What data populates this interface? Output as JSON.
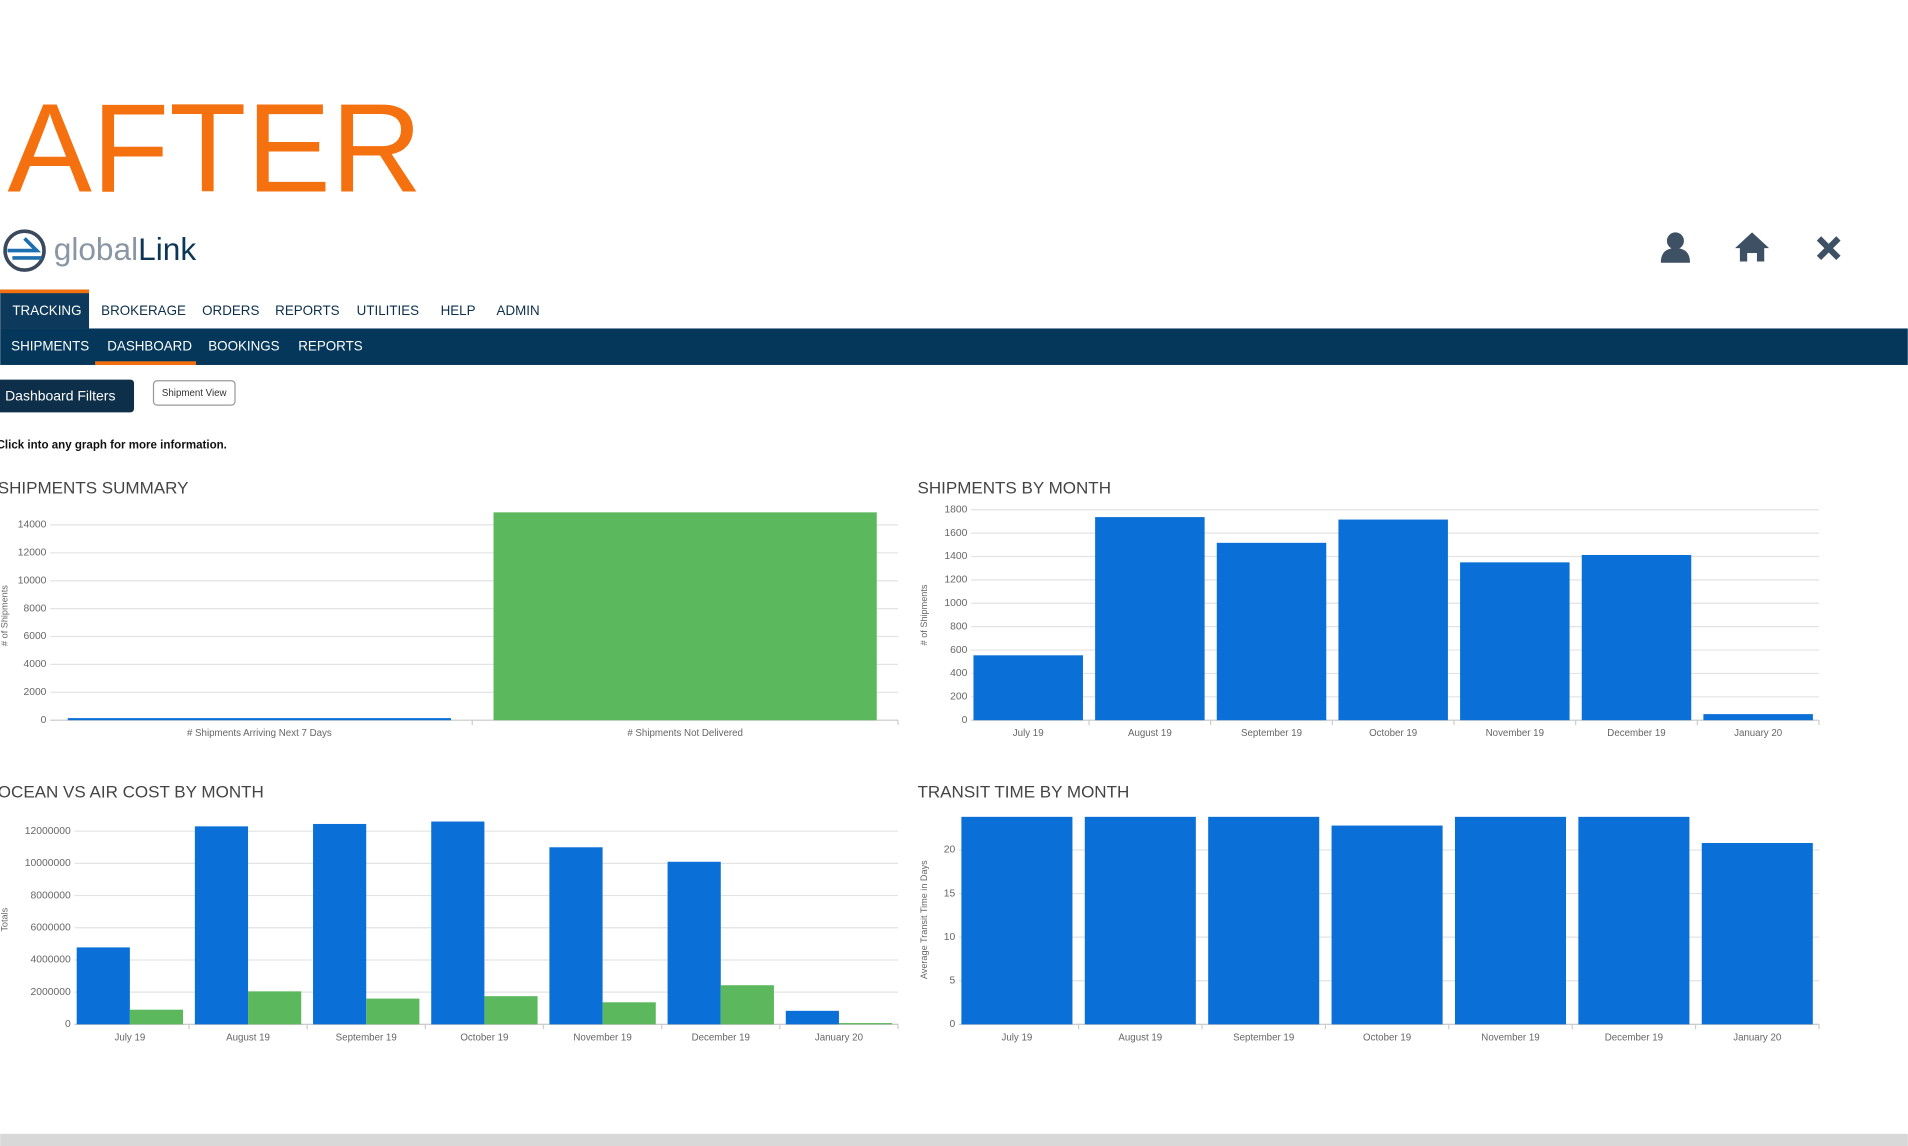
{
  "banner": "AFTER",
  "logo": {
    "part1": "global",
    "part2": "Link"
  },
  "nav": [
    "TRACKING",
    "BROKERAGE",
    "ORDERS",
    "REPORTS",
    "UTILITIES",
    "HELP",
    "ADMIN"
  ],
  "subnav": [
    "SHIPMENTS",
    "DASHBOARD",
    "BOOKINGS",
    "REPORTS"
  ],
  "buttons": [
    "Dashboard Filters",
    "Shipment View"
  ],
  "note": "Click into any graph for more information.",
  "chart_data": [
    {
      "type": "bar",
      "title": "SHIPMENTS SUMMARY",
      "y_label": "# of Shipments",
      "categories": [
        "# Shipments Arriving Next 7 Days",
        "# Shipments Not Delivered"
      ],
      "series": [
        {
          "color": "#0a6fd6",
          "values": [
            150,
            null
          ]
        },
        {
          "color": "#5cb85c",
          "values": [
            null,
            14900
          ]
        }
      ],
      "ylim": [
        0,
        15000
      ],
      "yticks": [
        0,
        2000,
        4000,
        6000,
        8000,
        10000,
        12000,
        14000
      ],
      "grid": true
    },
    {
      "type": "bar",
      "title": "SHIPMENTS BY MONTH",
      "y_label": "# of Shipments",
      "categories": [
        "July 19",
        "August 19",
        "September 19",
        "October 19",
        "November 19",
        "December 19",
        "January 20"
      ],
      "series": [
        {
          "color": "#0a6fd6",
          "values": [
            555,
            1737,
            1517,
            1716,
            1350,
            1413,
            52
          ]
        }
      ],
      "ylim": [
        0,
        1800
      ],
      "yticks": [
        0,
        200,
        400,
        600,
        800,
        1000,
        1200,
        1400,
        1600,
        1800
      ],
      "grid": true
    },
    {
      "type": "bar",
      "title": "OCEAN VS AIR COST BY MONTH",
      "y_label": "Totals",
      "categories": [
        "July 19",
        "August 19",
        "September 19",
        "October 19",
        "November 19",
        "December 19",
        "January 20"
      ],
      "series": [
        {
          "color": "#0a6fd6",
          "values": [
            4780000,
            12300000,
            12450000,
            12600000,
            11000000,
            10100000,
            840000
          ]
        },
        {
          "color": "#5cb85c",
          "values": [
            910000,
            2050000,
            1600000,
            1750000,
            1370000,
            2430000,
            80000
          ]
        }
      ],
      "ylim": [
        0,
        13000000
      ],
      "yticks": [
        0,
        2000000,
        4000000,
        6000000,
        8000000,
        10000000,
        12000000
      ],
      "grid": true
    },
    {
      "type": "bar",
      "title": "TRANSIT TIME BY MONTH",
      "y_label": "Average Transit Time in Days",
      "categories": [
        "July 19",
        "August 19",
        "September 19",
        "October 19",
        "November 19",
        "December 19",
        "January 20"
      ],
      "series": [
        {
          "color": "#0a6fd6",
          "values": [
            23.8,
            23.8,
            23.8,
            22.8,
            23.8,
            23.8,
            20.8
          ]
        }
      ],
      "ylim": [
        0,
        24
      ],
      "yticks": [
        0,
        5,
        10,
        15,
        20
      ],
      "grid": true
    }
  ]
}
